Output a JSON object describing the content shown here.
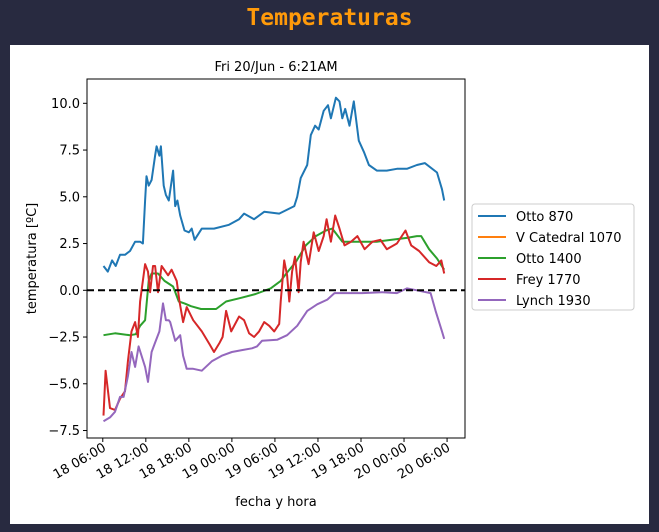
{
  "page": {
    "title": "Temperaturas",
    "title_color": "#ff9a0a",
    "background": "#282a40"
  },
  "chart_data": {
    "type": "line",
    "title": "Fri 20/Jun - 6:21AM",
    "xlabel": "fecha y hora",
    "ylabel": "temperatura [ºC]",
    "x_units": "hours since 18 06:00",
    "xlim": [
      -2.2,
      50.5
    ],
    "ylim": [
      -7.9,
      11.3
    ],
    "xticks": [
      0,
      6,
      12,
      18,
      24,
      30,
      36,
      42,
      48
    ],
    "xtick_labels": [
      "18 06:00",
      "18 12:00",
      "18 18:00",
      "19 00:00",
      "19 06:00",
      "19 12:00",
      "19 18:00",
      "20 00:00",
      "20 06:00"
    ],
    "yticks": [
      10,
      7.5,
      5,
      2.5,
      0,
      -2.5,
      -5,
      -7.5
    ],
    "ytick_labels": [
      "10.0",
      "7.5",
      "5.0",
      "2.5",
      "0.0",
      "−2.5",
      "−5.0",
      "−7.5"
    ],
    "reference_line": {
      "y": 0,
      "style": "dashed",
      "color": "#000000"
    },
    "grid": false,
    "legend_placement": "outside-right",
    "series": [
      {
        "name": "Otto 870",
        "color": "#1f77b4",
        "x": [
          0.1,
          0.7,
          1.3,
          1.8,
          2.4,
          3.1,
          3.8,
          4.5,
          5.2,
          5.6,
          5.9,
          6.1,
          6.4,
          6.8,
          7.3,
          7.5,
          7.9,
          8.1,
          8.5,
          8.8,
          9.2,
          9.8,
          10.1,
          10.4,
          10.8,
          11.4,
          12.0,
          12.4,
          12.8,
          13.8,
          15.5,
          17.6,
          19.0,
          19.7,
          21.1,
          22.5,
          24.6,
          26.7,
          27.1,
          27.6,
          28.5,
          29.0,
          29.6,
          30.1,
          30.8,
          31.4,
          31.8,
          32.5,
          33.0,
          33.4,
          33.8,
          34.4,
          35.0,
          35.7,
          36.4,
          37.1,
          38.2,
          39.6,
          41.0,
          42.4,
          43.8,
          44.9,
          46.6,
          47.3,
          47.6
        ],
        "y": [
          1.3,
          1.0,
          1.6,
          1.3,
          1.9,
          1.9,
          2.1,
          2.6,
          2.6,
          2.5,
          4.8,
          6.1,
          5.6,
          5.9,
          7.2,
          7.7,
          7.2,
          7.7,
          5.6,
          5.1,
          4.8,
          6.4,
          4.5,
          4.8,
          4.0,
          3.2,
          3.1,
          3.3,
          2.7,
          3.3,
          3.3,
          3.5,
          3.8,
          4.1,
          3.8,
          4.2,
          4.1,
          4.5,
          5.0,
          6.0,
          6.7,
          8.3,
          8.8,
          8.6,
          9.6,
          9.9,
          9.2,
          10.3,
          10.1,
          9.2,
          9.7,
          8.8,
          10.1,
          8.0,
          7.4,
          6.7,
          6.4,
          6.4,
          6.5,
          6.5,
          6.7,
          6.8,
          6.3,
          5.4,
          4.8
        ]
      },
      {
        "name": "V Catedral 1070",
        "color": "#ff7f0e",
        "x": [],
        "y": []
      },
      {
        "name": "Otto 1400",
        "color": "#2ca02c",
        "x": [
          0.1,
          1.7,
          3.8,
          4.6,
          5.2,
          5.9,
          6.4,
          6.8,
          7.7,
          8.6,
          9.8,
          10.6,
          11.4,
          12.3,
          13.7,
          14.4,
          15.8,
          17.2,
          19.3,
          21.3,
          23.4,
          24.8,
          25.8,
          26.9,
          28.3,
          29.7,
          31.1,
          32.0,
          33.4,
          35.5,
          38.2,
          40.3,
          42.4,
          43.8,
          44.4,
          45.5,
          46.6,
          47.6
        ],
        "y": [
          -2.4,
          -2.3,
          -2.4,
          -2.35,
          -1.9,
          -1.6,
          0.5,
          0.9,
          0.9,
          0.5,
          0.2,
          -0.6,
          -0.7,
          -0.85,
          -1.0,
          -1.0,
          -1.0,
          -0.6,
          -0.4,
          -0.2,
          0.1,
          0.5,
          1.0,
          1.5,
          2.4,
          2.9,
          3.2,
          3.3,
          2.6,
          2.6,
          2.6,
          2.7,
          2.8,
          2.9,
          2.9,
          2.2,
          1.7,
          1.1
        ]
      },
      {
        "name": "Frey 1770",
        "color": "#d62728",
        "x": [
          0.1,
          0.4,
          1.0,
          1.7,
          2.4,
          3.1,
          3.5,
          4.0,
          4.5,
          4.9,
          5.2,
          5.9,
          6.3,
          6.6,
          7.0,
          7.3,
          7.7,
          8.2,
          9.1,
          9.6,
          10.3,
          10.7,
          11.2,
          11.7,
          12.6,
          13.8,
          14.9,
          15.5,
          16.3,
          16.7,
          17.2,
          17.9,
          19.0,
          19.7,
          20.4,
          21.1,
          21.8,
          22.5,
          23.2,
          23.9,
          24.6,
          24.8,
          25.3,
          25.7,
          26.0,
          26.4,
          26.8,
          27.3,
          27.6,
          28.0,
          28.7,
          29.4,
          30.1,
          30.8,
          31.2,
          31.8,
          32.4,
          33.0,
          33.7,
          34.6,
          35.5,
          36.5,
          37.6,
          38.7,
          39.6,
          41.0,
          42.2,
          43.0,
          44.1,
          45.5,
          46.5,
          47.2,
          47.6
        ],
        "y": [
          -6.7,
          -4.3,
          -6.3,
          -6.4,
          -5.8,
          -5.4,
          -3.8,
          -2.2,
          -1.7,
          -2.5,
          -0.6,
          1.4,
          1.0,
          -0.1,
          1.3,
          1.3,
          -0.1,
          1.3,
          0.8,
          1.1,
          0.5,
          -0.6,
          -1.7,
          -0.9,
          -1.6,
          -2.2,
          -2.9,
          -3.3,
          -2.8,
          -2.5,
          -1.1,
          -2.2,
          -1.4,
          -1.6,
          -2.3,
          -2.5,
          -2.2,
          -1.7,
          -1.9,
          -2.2,
          -1.8,
          -0.6,
          1.6,
          0.8,
          -0.6,
          1.0,
          1.8,
          -0.1,
          1.5,
          2.6,
          1.4,
          3.1,
          2.1,
          2.9,
          3.8,
          2.6,
          4.0,
          3.3,
          2.4,
          2.6,
          2.9,
          2.2,
          2.6,
          2.7,
          2.2,
          2.5,
          3.2,
          2.4,
          2.1,
          1.5,
          1.3,
          1.6,
          0.9
        ]
      },
      {
        "name": "Lynch 1930",
        "color": "#9467bd",
        "x": [
          0.1,
          1.0,
          1.7,
          2.4,
          2.9,
          3.5,
          4.0,
          4.5,
          5.0,
          5.9,
          6.3,
          6.8,
          7.3,
          7.9,
          8.4,
          8.8,
          9.2,
          9.4,
          10.1,
          10.8,
          11.2,
          11.7,
          12.6,
          13.8,
          15.2,
          16.6,
          18.0,
          19.4,
          20.8,
          21.5,
          22.2,
          24.3,
          25.7,
          27.1,
          28.5,
          29.9,
          31.3,
          32.3,
          34.1,
          36.2,
          39.0,
          41.0,
          42.4,
          43.8,
          45.7,
          46.4,
          47.3,
          47.6
        ],
        "y": [
          -7.0,
          -6.8,
          -6.5,
          -5.7,
          -5.7,
          -4.6,
          -3.3,
          -4.1,
          -3.0,
          -4.1,
          -4.9,
          -3.3,
          -2.8,
          -2.2,
          -0.7,
          -1.6,
          -1.6,
          -1.7,
          -2.7,
          -2.4,
          -3.5,
          -4.2,
          -4.2,
          -4.3,
          -3.8,
          -3.5,
          -3.3,
          -3.2,
          -3.1,
          -3.0,
          -2.7,
          -2.65,
          -2.4,
          -1.9,
          -1.1,
          -0.75,
          -0.5,
          -0.15,
          -0.15,
          -0.15,
          -0.1,
          -0.15,
          0.1,
          0.0,
          -0.15,
          -1.1,
          -2.2,
          -2.6
        ]
      }
    ]
  }
}
